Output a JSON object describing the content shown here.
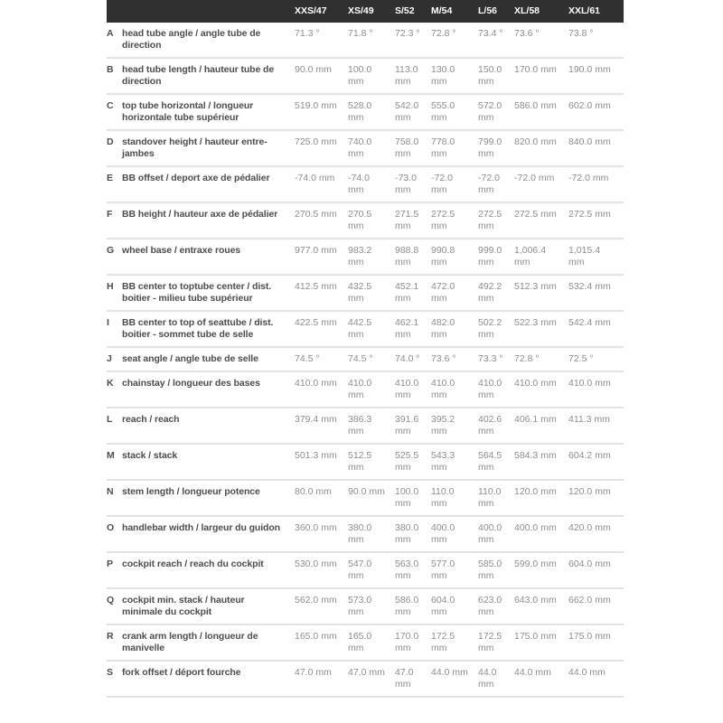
{
  "colors": {
    "header_bg": "#303030",
    "header_text": "#ffffff",
    "label_text": "#4d4d4d",
    "value_text": "#8e8e8e",
    "divider": "#e2e2e2",
    "page_bg": "#ffffff"
  },
  "table": {
    "columns": [
      "XXS/47",
      "XS/49",
      "S/52",
      "M/54",
      "L/56",
      "XL/58",
      "XXL/61"
    ],
    "rows": [
      {
        "letter": "A",
        "label": "head tube angle / angle tube de direction",
        "values": [
          "71.3 °",
          "71.8 °",
          "72.3 °",
          "72.8 °",
          "73.4 °",
          "73.6 °",
          "73.8 °"
        ]
      },
      {
        "letter": "B",
        "label": "head tube length / hauteur tube de direction",
        "values": [
          "90.0 mm",
          "100.0 mm",
          "113.0 mm",
          "130.0 mm",
          "150.0 mm",
          "170.0 mm",
          "190.0 mm"
        ]
      },
      {
        "letter": "C",
        "label": "top tube horizontal / longueur horizontale tube supérieur",
        "values": [
          "519.0 mm",
          "528.0 mm",
          "542.0 mm",
          "555.0 mm",
          "572.0 mm",
          "586.0 mm",
          "602.0 mm"
        ]
      },
      {
        "letter": "D",
        "label": "standover height / hauteur entre-jambes",
        "values": [
          "725.0 mm",
          "740.0 mm",
          "758.0 mm",
          "778.0 mm",
          "799.0 mm",
          "820.0 mm",
          "840.0 mm"
        ]
      },
      {
        "letter": "E",
        "label": "BB offset / deport axe de pédalier",
        "values": [
          "-74.0 mm",
          "-74.0 mm",
          "-73.0 mm",
          "-72.0 mm",
          "-72.0 mm",
          "-72.0 mm",
          "-72.0 mm"
        ]
      },
      {
        "letter": "F",
        "label": "BB height / hauteur axe de pédalier",
        "values": [
          "270.5 mm",
          "270.5 mm",
          "271.5 mm",
          "272.5 mm",
          "272.5 mm",
          "272.5 mm",
          "272.5 mm"
        ]
      },
      {
        "letter": "G",
        "label": "wheel base / entraxe roues",
        "values": [
          "977.0 mm",
          "983.2 mm",
          "988.8 mm",
          "990.8 mm",
          "999.0 mm",
          "1,006.4 mm",
          "1,015.4 mm"
        ]
      },
      {
        "letter": "H",
        "label": "BB center to toptube center / dist. boitier - milieu tube supérieur",
        "values": [
          "412.5 mm",
          "432.5 mm",
          "452.1 mm",
          "472.0 mm",
          "492.2 mm",
          "512.3 mm",
          "532.4 mm"
        ]
      },
      {
        "letter": "I",
        "label": "BB center to top of seattube / dist. boitier - sommet tube de selle",
        "values": [
          "422.5 mm",
          "442.5 mm",
          "462.1 mm",
          "482.0 mm",
          "502.2 mm",
          "522.3 mm",
          "542.4 mm"
        ]
      },
      {
        "letter": "J",
        "label": "seat angle / angle tube de selle",
        "values": [
          "74.5 °",
          "74.5 °",
          "74.0 °",
          "73.6 °",
          "73.3 °",
          "72.8 °",
          "72.5 °"
        ]
      },
      {
        "letter": "K",
        "label": "chainstay / longueur des bases",
        "values": [
          "410.0 mm",
          "410.0 mm",
          "410.0 mm",
          "410.0 mm",
          "410.0 mm",
          "410.0 mm",
          "410.0 mm"
        ]
      },
      {
        "letter": "L",
        "label": "reach / reach",
        "values": [
          "379.4 mm",
          "386.3 mm",
          "391.6 mm",
          "395.2 mm",
          "402.6 mm",
          "406.1 mm",
          "411.3 mm"
        ]
      },
      {
        "letter": "M",
        "label": "stack / stack",
        "values": [
          "501.3 mm",
          "512.5 mm",
          "525.5 mm",
          "543.3 mm",
          "564.5 mm",
          "584.3 mm",
          "604.2 mm"
        ]
      },
      {
        "letter": "N",
        "label": "stem length / longueur potence",
        "values": [
          "80.0 mm",
          "90.0 mm",
          "100.0 mm",
          "110.0 mm",
          "110.0 mm",
          "120.0 mm",
          "120.0 mm"
        ]
      },
      {
        "letter": "O",
        "label": "handlebar width / largeur du guidon",
        "values": [
          "360.0 mm",
          "380.0 mm",
          "380.0 mm",
          "400.0 mm",
          "400.0 mm",
          "400.0 mm",
          "420.0 mm"
        ]
      },
      {
        "letter": "P",
        "label": "cockpit reach / reach du cockpit",
        "values": [
          "530.0 mm",
          "547.0 mm",
          "563.0 mm",
          "577.0 mm",
          "585.0 mm",
          "599.0 mm",
          "604.0 mm"
        ]
      },
      {
        "letter": "Q",
        "label": "cockpit min. stack / hauteur minimale du cockpit",
        "values": [
          "562.0 mm",
          "573.0 mm",
          "586.0 mm",
          "604.0 mm",
          "623.0 mm",
          "643.0 mm",
          "662.0 mm"
        ]
      },
      {
        "letter": "R",
        "label": "crank arm length / longueur de manivelle",
        "values": [
          "165.0 mm",
          "165.0 mm",
          "170.0 mm",
          "172.5 mm",
          "172.5 mm",
          "175.0 mm",
          "175.0 mm"
        ]
      },
      {
        "letter": "S",
        "label": "fork offset / déport fourche",
        "values": [
          "47.0 mm",
          "47.0 mm",
          "47.0 mm",
          "44.0 mm",
          "44.0 mm",
          "44.0 mm",
          "44.0 mm"
        ]
      }
    ]
  }
}
